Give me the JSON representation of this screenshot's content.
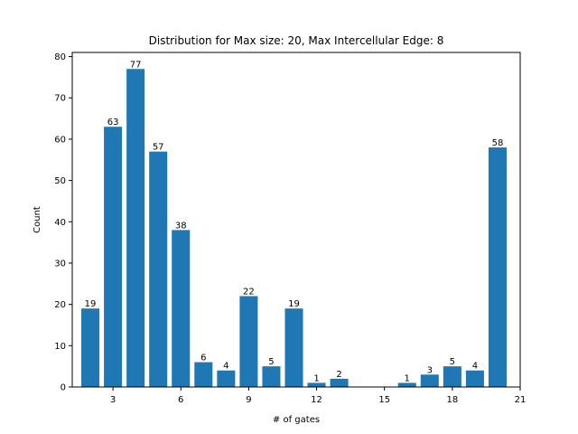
{
  "chart_data": {
    "type": "bar",
    "title": "Distribution for Max size: 20, Max Intercellular Edge: 8",
    "xlabel": "# of gates",
    "ylabel": "Count",
    "x": [
      2,
      3,
      4,
      5,
      6,
      7,
      8,
      9,
      10,
      11,
      12,
      13,
      16,
      17,
      18,
      19,
      20
    ],
    "values": [
      19,
      63,
      77,
      57,
      38,
      6,
      4,
      22,
      5,
      19,
      1,
      2,
      1,
      3,
      5,
      4,
      58
    ],
    "xlim": [
      1.2,
      21
    ],
    "ylim": [
      0,
      81
    ],
    "xticks": [
      3,
      6,
      9,
      12,
      15,
      18,
      21
    ],
    "yticks": [
      0,
      10,
      20,
      30,
      40,
      50,
      60,
      70,
      80
    ],
    "bar_color": "#1f77b4",
    "grid": false
  }
}
